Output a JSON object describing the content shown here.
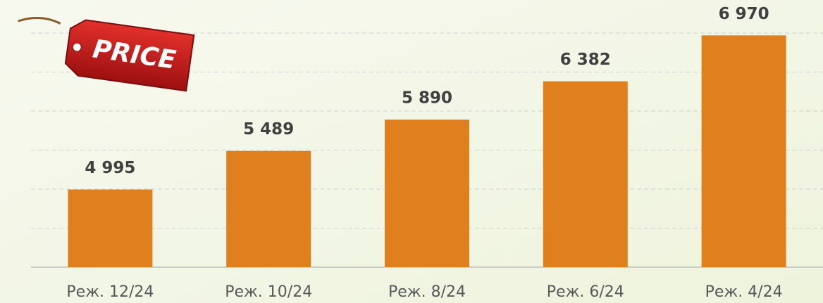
{
  "chart_data": {
    "type": "bar",
    "categories": [
      "Реж. 12/24",
      "Реж. 10/24",
      "Реж. 8/24",
      "Реж. 6/24",
      "Реж. 4/24"
    ],
    "values": [
      4995,
      5489,
      5890,
      6382,
      6970
    ],
    "value_labels": [
      "4 995",
      "5 489",
      "5 890",
      "6 382",
      "6 970"
    ],
    "color": "#e07f1d",
    "ylim": [
      4000,
      7000
    ],
    "yticks": [
      4000,
      4500,
      5000,
      5500,
      6000,
      6500,
      7000
    ],
    "grid": true
  },
  "tag": {
    "text": "PRICE"
  }
}
